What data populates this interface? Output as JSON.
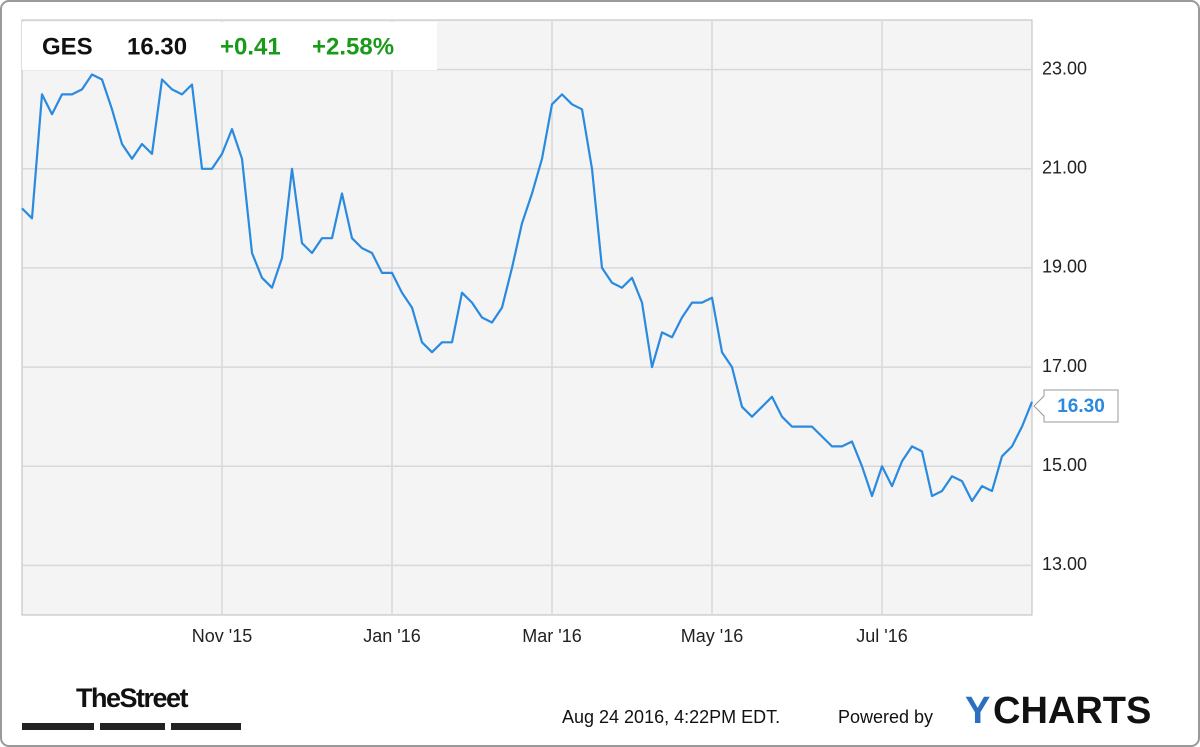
{
  "chart_data": {
    "type": "line",
    "ticker": "GES",
    "price": "16.30",
    "change": "+0.41",
    "change_pct": "+2.58%",
    "categories": [
      null,
      null,
      null,
      null,
      null,
      null,
      null,
      null,
      null,
      null,
      null,
      null,
      null,
      null,
      null,
      null,
      null,
      null,
      null,
      null,
      "Nov '15",
      null,
      null,
      null,
      null,
      null,
      null,
      null,
      null,
      null,
      null,
      null,
      null,
      null,
      null,
      null,
      null,
      "Jan '16",
      null,
      null,
      null,
      null,
      null,
      null,
      null,
      null,
      null,
      null,
      null,
      null,
      null,
      null,
      null,
      "Mar '16",
      null,
      null,
      null,
      null,
      null,
      null,
      null,
      null,
      null,
      null,
      null,
      null,
      null,
      null,
      null,
      "May '16",
      null,
      null,
      null,
      null,
      null,
      null,
      null,
      null,
      null,
      null,
      null,
      null,
      null,
      null,
      null,
      null,
      "Jul '16",
      null,
      null,
      null,
      null,
      null,
      null,
      null,
      null,
      null,
      null,
      null,
      null,
      null,
      null,
      null
    ],
    "series": [
      {
        "name": "GES",
        "color": "#2a8ae0",
        "values": [
          20.2,
          20.0,
          22.5,
          22.1,
          22.5,
          22.5,
          22.6,
          22.9,
          22.8,
          22.2,
          21.5,
          21.2,
          21.5,
          21.3,
          22.8,
          22.6,
          22.5,
          22.7,
          21.0,
          21.0,
          21.3,
          21.8,
          21.2,
          19.3,
          18.8,
          18.6,
          19.2,
          21.0,
          19.5,
          19.3,
          19.6,
          19.6,
          20.5,
          19.6,
          19.4,
          19.3,
          18.9,
          18.9,
          18.5,
          18.2,
          17.5,
          17.3,
          17.5,
          17.5,
          18.5,
          18.3,
          18.0,
          17.9,
          18.2,
          19.0,
          19.9,
          20.5,
          21.2,
          22.3,
          22.5,
          22.3,
          22.2,
          21.0,
          19.0,
          18.7,
          18.6,
          18.8,
          18.3,
          17.0,
          17.7,
          17.6,
          18.0,
          18.3,
          18.3,
          18.4,
          17.3,
          17.0,
          16.2,
          16.0,
          16.2,
          16.4,
          16.0,
          15.8,
          15.8,
          15.8,
          15.6,
          15.4,
          15.4,
          15.5,
          15.0,
          14.4,
          15.0,
          14.6,
          15.1,
          15.4,
          15.3,
          14.4,
          14.5,
          14.8,
          14.7,
          14.3,
          14.6,
          14.5,
          15.2,
          15.4,
          15.8,
          16.3
        ]
      }
    ],
    "ylim": [
      12,
      24
    ],
    "yticks": [
      {
        "value": 13,
        "label": "13.00"
      },
      {
        "value": 15,
        "label": "15.00"
      },
      {
        "value": 17,
        "label": "17.00"
      },
      {
        "value": 19,
        "label": "19.00"
      },
      {
        "value": 21,
        "label": "21.00"
      },
      {
        "value": 23,
        "label": "23.00"
      }
    ],
    "grid": true
  },
  "footer": {
    "source_logo": "TheStreet",
    "timestamp": "Aug 24 2016, 4:22PM EDT.",
    "powered_by": "Powered by",
    "brand_first": "Y",
    "brand_rest": "CHARTS"
  }
}
